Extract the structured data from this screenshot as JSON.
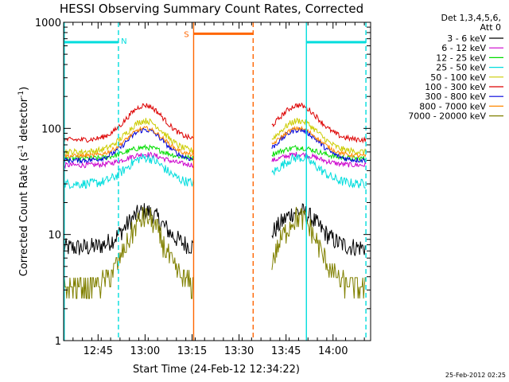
{
  "chart_data": {
    "type": "line",
    "title": "HESSI Observing Summary Count Rates, Corrected",
    "xlabel": "Start Time (24-Feb-12 12:34:22)",
    "ylabel": "Corrected Count Rate (s⁻¹ detector⁻¹)",
    "ylabel_main": "Corrected Count Rate (s",
    "ylabel_sup1": "-1",
    "ylabel_mid": " detector",
    "ylabel_sup2": "-1",
    "ylabel_end": ")",
    "x_unit": "minutes after 12:34:22",
    "xlim": [
      0,
      98
    ],
    "ylim": [
      1,
      1000
    ],
    "yscale": "log",
    "x_ticks": [
      {
        "x": 11,
        "label": "12:45"
      },
      {
        "x": 26,
        "label": "13:00"
      },
      {
        "x": 41,
        "label": "13:15"
      },
      {
        "x": 56,
        "label": "13:30"
      },
      {
        "x": 71,
        "label": "13:45"
      },
      {
        "x": 86,
        "label": "14:00"
      }
    ],
    "y_ticks": [
      {
        "y": 1,
        "label": "1"
      },
      {
        "y": 10,
        "label": "10"
      },
      {
        "y": 100,
        "label": "100"
      },
      {
        "y": 1000,
        "label": "1000"
      }
    ],
    "legend_header": [
      "Det 1,3,4,5,6,",
      "Att 0"
    ],
    "legend_position": "right",
    "series": [
      {
        "name": "3 - 6 keV",
        "color": "#000000",
        "base": 7.5,
        "peak": 16.5,
        "noise": 0.09
      },
      {
        "name": "6 - 12 keV",
        "color": "#cc00cc",
        "base": 45,
        "peak": 57,
        "noise": 0.025
      },
      {
        "name": "12 - 25 keV",
        "color": "#00dd00",
        "base": 52,
        "peak": 66,
        "noise": 0.025
      },
      {
        "name": "25 - 50 keV",
        "color": "#00dddd",
        "base": 30,
        "peak": 53,
        "noise": 0.045
      },
      {
        "name": "50 - 100 keV",
        "color": "#cccc00",
        "base": 60,
        "peak": 118,
        "noise": 0.03
      },
      {
        "name": "100 - 300 keV",
        "color": "#dd0000",
        "base": 78,
        "peak": 165,
        "noise": 0.025
      },
      {
        "name": "300 - 800 keV",
        "color": "#0000dd",
        "base": 50,
        "peak": 97,
        "noise": 0.025
      },
      {
        "name": "800 - 7000 keV",
        "color": "#ff8800",
        "base": 55,
        "peak": 100,
        "noise": 0.02
      },
      {
        "name": "7000 - 20000 keV",
        "color": "#808000",
        "base": 2.8,
        "peak": 14,
        "noise": 0.12
      }
    ],
    "data_gaps": [
      [
        41.5,
        66.5
      ]
    ],
    "peaks_at": [
      26,
      75
    ],
    "saa_bar": {
      "flag": "S",
      "x_start": 41.5,
      "x_end": 60.5,
      "y": 780,
      "color": "#ff6600"
    },
    "night_bars": [
      {
        "flag": "N",
        "x_start": 0,
        "x_end": 17.5,
        "y": 650,
        "color": "#00dddd"
      },
      {
        "x_start": 77.5,
        "x_end": 96.5,
        "y": 650,
        "color": "#00dddd"
      }
    ],
    "vlines": [
      {
        "x": 0.2,
        "style": "solid",
        "color": "#00dddd"
      },
      {
        "x": 17.5,
        "style": "dashed",
        "color": "#00dddd"
      },
      {
        "x": 41.5,
        "style": "solid",
        "color": "#ff6600"
      },
      {
        "x": 60.5,
        "style": "dashed",
        "color": "#ff6600"
      },
      {
        "x": 77.5,
        "style": "solid",
        "color": "#00dddd"
      },
      {
        "x": 96.5,
        "style": "dashed",
        "color": "#00dddd"
      }
    ]
  },
  "footer": {
    "timestamp": "25-Feb-2012 02:25"
  }
}
